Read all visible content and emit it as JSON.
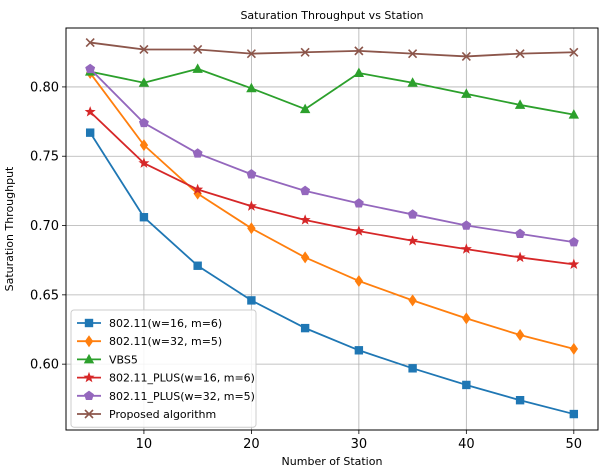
{
  "chart_data": {
    "type": "line",
    "title": "Saturation Throughput vs Station",
    "xlabel": "Number of Station",
    "ylabel": "Saturation Throughput",
    "xlim": [
      2.75,
      52.25
    ],
    "ylim": [
      0.5525,
      0.8425
    ],
    "xticks": [
      10,
      20,
      30,
      40,
      50
    ],
    "xtick_labels": [
      "10",
      "20",
      "30",
      "40",
      "50"
    ],
    "yticks": [
      0.6,
      0.65,
      0.7,
      0.75,
      0.8
    ],
    "ytick_labels": [
      "0.60",
      "0.65",
      "0.70",
      "0.75",
      "0.80"
    ],
    "grid": true,
    "legend_position": "lower-left",
    "x": [
      5,
      10,
      15,
      20,
      25,
      30,
      35,
      40,
      45,
      50
    ],
    "series": [
      {
        "name": "802.11(w=16, m=6)",
        "color": "#1f77b4",
        "marker": "square",
        "values": [
          0.767,
          0.706,
          0.671,
          0.646,
          0.626,
          0.61,
          0.597,
          0.585,
          0.574,
          0.564
        ]
      },
      {
        "name": "802.11(w=32, m=5)",
        "color": "#ff7f0e",
        "marker": "diamond",
        "values": [
          0.81,
          0.758,
          0.723,
          0.698,
          0.677,
          0.66,
          0.646,
          0.633,
          0.621,
          0.611
        ]
      },
      {
        "name": "VBS5",
        "color": "#2ca02c",
        "marker": "triangle",
        "values": [
          0.811,
          0.803,
          0.813,
          0.799,
          0.784,
          0.81,
          0.803,
          0.795,
          0.787,
          0.78
        ]
      },
      {
        "name": "802.11_PLUS(w=16, m=6)",
        "color": "#d62728",
        "marker": "star",
        "values": [
          0.782,
          0.745,
          0.726,
          0.714,
          0.704,
          0.696,
          0.689,
          0.683,
          0.677,
          0.672
        ]
      },
      {
        "name": "802.11_PLUS(w=32, m=5)",
        "color": "#9467bd",
        "marker": "pentagon",
        "values": [
          0.813,
          0.774,
          0.752,
          0.737,
          0.725,
          0.716,
          0.708,
          0.7,
          0.694,
          0.688
        ]
      },
      {
        "name": "Proposed algorithm",
        "color": "#8c564b",
        "marker": "x",
        "values": [
          0.832,
          0.827,
          0.827,
          0.824,
          0.825,
          0.826,
          0.824,
          0.822,
          0.824,
          0.825
        ]
      }
    ]
  }
}
